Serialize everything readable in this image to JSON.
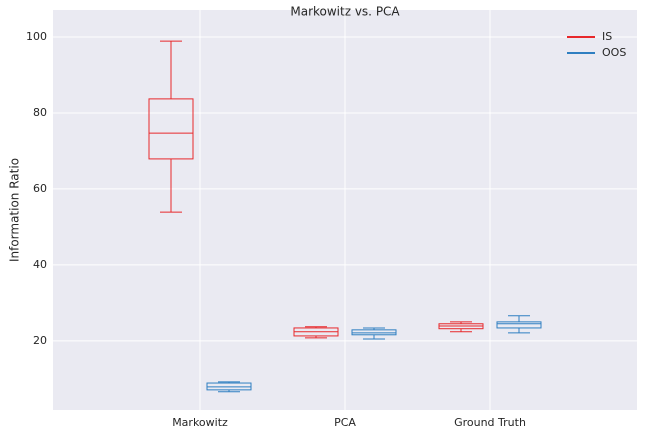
{
  "chart_data": {
    "type": "box",
    "title": "Markowitz vs. PCA",
    "y_label": "Information Ratio",
    "categories": [
      "Markowitz",
      "PCA",
      "Ground Truth"
    ],
    "series": [
      {
        "name": "IS",
        "color": "#e8282b",
        "whislo": [
          53.9,
          20.8,
          22.4
        ],
        "q1": [
          67.9,
          21.3,
          23.2
        ],
        "med": [
          74.7,
          22.4,
          23.9
        ],
        "q3": [
          83.7,
          23.4,
          24.5
        ],
        "whishi": [
          98.9,
          23.7,
          25.0
        ]
      },
      {
        "name": "OOS",
        "color": "#2f7fc1",
        "whislo": [
          6.6,
          20.5,
          22.1
        ],
        "q1": [
          7.1,
          21.6,
          23.4
        ],
        "med": [
          7.9,
          22.1,
          24.5
        ],
        "q3": [
          8.9,
          22.9,
          25.0
        ],
        "whishi": [
          9.2,
          23.4,
          26.6
        ]
      }
    ],
    "ylim": [
      1.8,
      107.1
    ],
    "yticks": [
      20,
      40,
      60,
      80,
      100
    ],
    "grid": true,
    "legend": "upper right"
  }
}
